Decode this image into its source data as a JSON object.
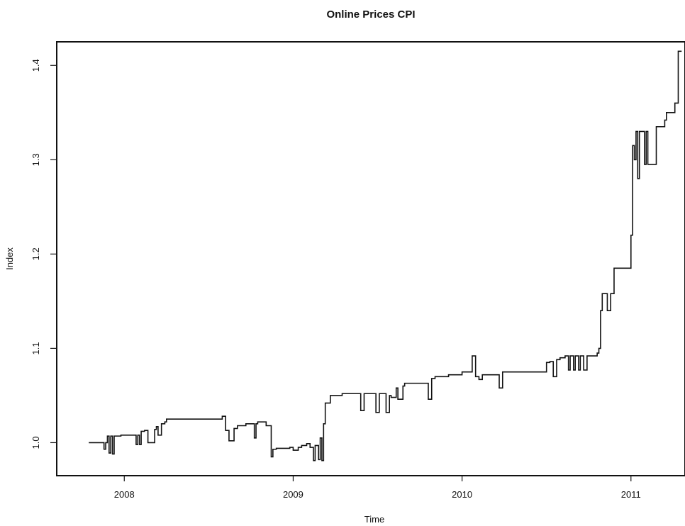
{
  "chart_data": {
    "type": "line",
    "title": "Online Prices CPI",
    "xlabel": "Time",
    "ylabel": "Index",
    "xlim": [
      2007.6,
      2011.32
    ],
    "ylim": [
      0.965,
      1.425
    ],
    "x_ticks": [
      2008,
      2009,
      2010,
      2011
    ],
    "x_tick_labels": [
      "2008",
      "2009",
      "2010",
      "2011"
    ],
    "y_ticks": [
      1.0,
      1.1,
      1.2,
      1.3,
      1.4
    ],
    "y_tick_labels": [
      "1.0",
      "1.1",
      "1.2",
      "1.3",
      "1.4"
    ],
    "grid": false,
    "legend": "none",
    "line_color": "#111111",
    "series": [
      {
        "step": true,
        "x": [
          2007.79,
          2007.88,
          2007.89,
          2007.9,
          2007.91,
          2007.92,
          2007.93,
          2007.94,
          2007.95,
          2007.96,
          2007.97,
          2007.98,
          2008.0,
          2008.07,
          2008.08,
          2008.09,
          2008.1,
          2008.12,
          2008.14,
          2008.18,
          2008.19,
          2008.2,
          2008.22,
          2008.24,
          2008.25,
          2008.28,
          2008.3,
          2008.58,
          2008.6,
          2008.62,
          2008.65,
          2008.67,
          2008.72,
          2008.77,
          2008.78,
          2008.79,
          2008.84,
          2008.87,
          2008.88,
          2008.9,
          2008.98,
          2009.0,
          2009.03,
          2009.05,
          2009.08,
          2009.1,
          2009.12,
          2009.13,
          2009.15,
          2009.16,
          2009.17,
          2009.18,
          2009.19,
          2009.22,
          2009.27,
          2009.29,
          2009.4,
          2009.42,
          2009.45,
          2009.49,
          2009.51,
          2009.55,
          2009.57,
          2009.58,
          2009.61,
          2009.62,
          2009.65,
          2009.66,
          2009.8,
          2009.82,
          2009.84,
          2009.92,
          2010.0,
          2010.03,
          2010.06,
          2010.08,
          2010.1,
          2010.12,
          2010.2,
          2010.22,
          2010.24,
          2010.27,
          2010.5,
          2010.52,
          2010.54,
          2010.56,
          2010.58,
          2010.61,
          2010.63,
          2010.64,
          2010.66,
          2010.67,
          2010.69,
          2010.7,
          2010.72,
          2010.74,
          2010.76,
          2010.8,
          2010.81,
          2010.82,
          2010.83,
          2010.86,
          2010.88,
          2010.9,
          2010.99,
          2011.0,
          2011.01,
          2011.02,
          2011.03,
          2011.04,
          2011.05,
          2011.07,
          2011.08,
          2011.09,
          2011.1,
          2011.12,
          2011.15,
          2011.2,
          2011.21,
          2011.23,
          2011.26,
          2011.28,
          2011.3
        ],
        "y": [
          1.0,
          0.993,
          1.0,
          1.007,
          0.989,
          1.007,
          0.988,
          1.007,
          1.007,
          1.007,
          1.007,
          1.008,
          1.008,
          0.998,
          1.008,
          0.998,
          1.012,
          1.013,
          1.0,
          1.014,
          1.017,
          1.008,
          1.02,
          1.022,
          1.025,
          1.025,
          1.025,
          1.028,
          1.013,
          1.002,
          1.015,
          1.018,
          1.02,
          1.005,
          1.02,
          1.022,
          1.018,
          0.985,
          0.993,
          0.994,
          0.995,
          0.992,
          0.995,
          0.997,
          0.999,
          0.995,
          0.981,
          0.997,
          0.982,
          1.005,
          0.981,
          1.02,
          1.042,
          1.05,
          1.05,
          1.052,
          1.034,
          1.052,
          1.052,
          1.032,
          1.052,
          1.032,
          1.05,
          1.048,
          1.058,
          1.046,
          1.06,
          1.063,
          1.046,
          1.068,
          1.07,
          1.072,
          1.075,
          1.075,
          1.092,
          1.07,
          1.067,
          1.072,
          1.072,
          1.058,
          1.075,
          1.075,
          1.085,
          1.086,
          1.07,
          1.088,
          1.09,
          1.092,
          1.077,
          1.092,
          1.077,
          1.092,
          1.077,
          1.092,
          1.077,
          1.092,
          1.092,
          1.095,
          1.1,
          1.14,
          1.158,
          1.14,
          1.158,
          1.185,
          1.185,
          1.22,
          1.315,
          1.3,
          1.33,
          1.28,
          1.33,
          1.33,
          1.295,
          1.33,
          1.295,
          1.295,
          1.335,
          1.342,
          1.35,
          1.35,
          1.36,
          1.415,
          1.415
        ]
      }
    ]
  }
}
